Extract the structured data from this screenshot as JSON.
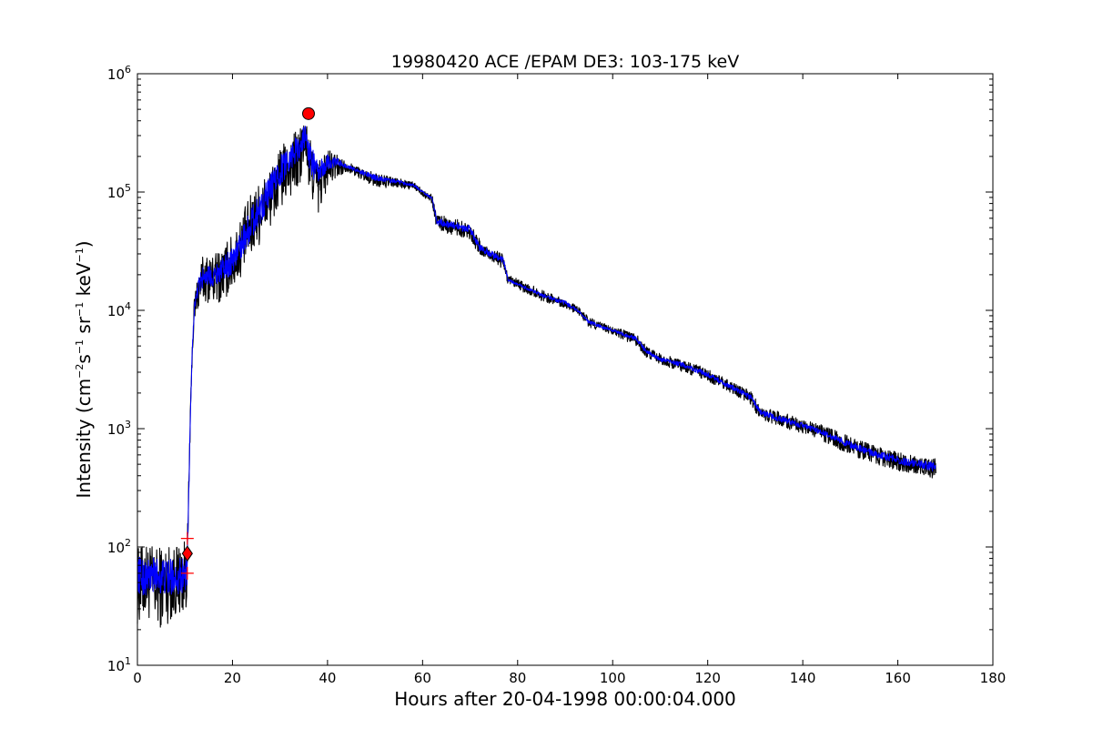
{
  "chart_data": {
    "type": "line",
    "title": "19980420 ACE /EPAM DE3: 103-175 keV",
    "xlabel": "Hours after 20-04-1998 00:00:04.000",
    "ylabel": {
      "prefix": "Intensity (cm",
      "exp1": "−2",
      "mid1": "s",
      "exp2": "−1",
      "mid2": " sr",
      "exp3": "−1",
      "mid3": " keV",
      "exp4": "−1",
      "suffix": ")"
    },
    "xlim": [
      0,
      180
    ],
    "ylim": [
      10,
      1000000
    ],
    "yscale": "log",
    "x_ticks": [
      0,
      20,
      40,
      60,
      80,
      100,
      120,
      140,
      160,
      180
    ],
    "x_tick_labels": [
      "0",
      "20",
      "40",
      "60",
      "80",
      "100",
      "120",
      "140",
      "160",
      "180"
    ],
    "y_ticks": [
      {
        "value": 10,
        "base": "10",
        "exp": "1"
      },
      {
        "value": 100,
        "base": "10",
        "exp": "2"
      },
      {
        "value": 1000,
        "base": "10",
        "exp": "3"
      },
      {
        "value": 10000,
        "base": "10",
        "exp": "4"
      },
      {
        "value": 100000,
        "base": "10",
        "exp": "5"
      },
      {
        "value": 1000000,
        "base": "10",
        "exp": "6"
      }
    ],
    "grid": false,
    "series": [
      {
        "color": "#000000",
        "style": "noisy-envelope",
        "x": [
          0,
          2,
          4,
          6,
          8,
          10,
          10.5,
          11,
          11.5,
          12,
          13,
          14,
          16,
          18,
          20,
          22,
          24,
          26,
          28,
          30,
          32,
          34,
          35.5,
          36,
          37,
          38,
          40,
          42,
          44,
          50,
          58,
          62,
          63,
          65,
          70,
          72,
          75,
          77,
          78,
          85,
          90,
          93,
          95,
          100,
          105,
          107,
          110,
          115,
          120,
          125,
          129,
          131,
          135,
          140,
          145,
          150,
          155,
          160,
          165,
          168
        ],
        "upper": [
          100,
          110,
          100,
          110,
          105,
          115,
          120,
          900,
          5000,
          14000,
          25000,
          30000,
          30000,
          35000,
          45000,
          65000,
          100000,
          130000,
          160000,
          230000,
          300000,
          350000,
          430000,
          300000,
          250000,
          200000,
          230000,
          210000,
          180000,
          145000,
          122000,
          95000,
          65000,
          62000,
          55000,
          40000,
          33000,
          30000,
          20000,
          15000,
          12500,
          10500,
          8800,
          7300,
          6300,
          5000,
          4300,
          3800,
          3200,
          2500,
          2100,
          1550,
          1400,
          1200,
          1050,
          850,
          720,
          640,
          580,
          560
        ],
        "lower": [
          22,
          25,
          20,
          22,
          25,
          28,
          35,
          600,
          3500,
          8000,
          10000,
          12000,
          11000,
          12000,
          14000,
          20000,
          28000,
          38000,
          50000,
          70000,
          90000,
          100000,
          180000,
          100000,
          80000,
          60000,
          110000,
          130000,
          150000,
          110000,
          105000,
          80000,
          48000,
          45000,
          40000,
          28000,
          25000,
          22000,
          16000,
          12000,
          10500,
          9000,
          7200,
          6200,
          5000,
          4000,
          3500,
          3000,
          2500,
          2000,
          1600,
          1200,
          1050,
          900,
          750,
          600,
          500,
          440,
          400,
          370
        ]
      },
      {
        "color": "#0000ff",
        "style": "noisy-envelope",
        "x": [
          0,
          2,
          4,
          6,
          8,
          10,
          10.5,
          11,
          11.5,
          12,
          13,
          14,
          16,
          18,
          20,
          22,
          24,
          26,
          28,
          30,
          32,
          34,
          35.5,
          36,
          37,
          38,
          40,
          42,
          44,
          50,
          58,
          62,
          63,
          65,
          70,
          72,
          75,
          77,
          78,
          85,
          90,
          93,
          95,
          100,
          105,
          107,
          110,
          115,
          120,
          125,
          129,
          131,
          135,
          140,
          145,
          150,
          155,
          160,
          165,
          168
        ],
        "upper": [
          85,
          80,
          85,
          80,
          80,
          85,
          90,
          800,
          4500,
          12000,
          20000,
          24000,
          24000,
          28000,
          35000,
          50000,
          75000,
          105000,
          140000,
          200000,
          260000,
          320000,
          390000,
          280000,
          230000,
          180000,
          210000,
          195000,
          170000,
          140000,
          118000,
          90000,
          60000,
          58000,
          52000,
          36000,
          31000,
          28000,
          18500,
          14000,
          12000,
          10000,
          8200,
          7000,
          6000,
          4700,
          4000,
          3600,
          3000,
          2350,
          1950,
          1450,
          1300,
          1120,
          950,
          780,
          660,
          590,
          540,
          520
        ],
        "lower": [
          40,
          38,
          40,
          38,
          40,
          40,
          45,
          650,
          4000,
          10000,
          14000,
          16000,
          16000,
          18000,
          20000,
          28000,
          40000,
          55000,
          80000,
          110000,
          150000,
          180000,
          250000,
          160000,
          130000,
          110000,
          150000,
          165000,
          160000,
          125000,
          112000,
          86000,
          53000,
          50000,
          45000,
          32000,
          27000,
          25000,
          17500,
          13000,
          11000,
          9500,
          7600,
          6600,
          5500,
          4300,
          3700,
          3300,
          2700,
          2150,
          1750,
          1300,
          1150,
          1000,
          850,
          680,
          570,
          500,
          460,
          430
        ]
      }
    ],
    "markers": [
      {
        "shape": "circle",
        "x": 36.0,
        "y": 460000,
        "color": "#ff0000"
      },
      {
        "shape": "diamond",
        "x": 10.5,
        "y": 88,
        "color": "#ff0000"
      },
      {
        "shape": "plus",
        "x": 10.5,
        "y": 118,
        "color": "#ff0000"
      },
      {
        "shape": "plus",
        "x": 10.5,
        "y": 60,
        "color": "#ff0000"
      }
    ]
  }
}
